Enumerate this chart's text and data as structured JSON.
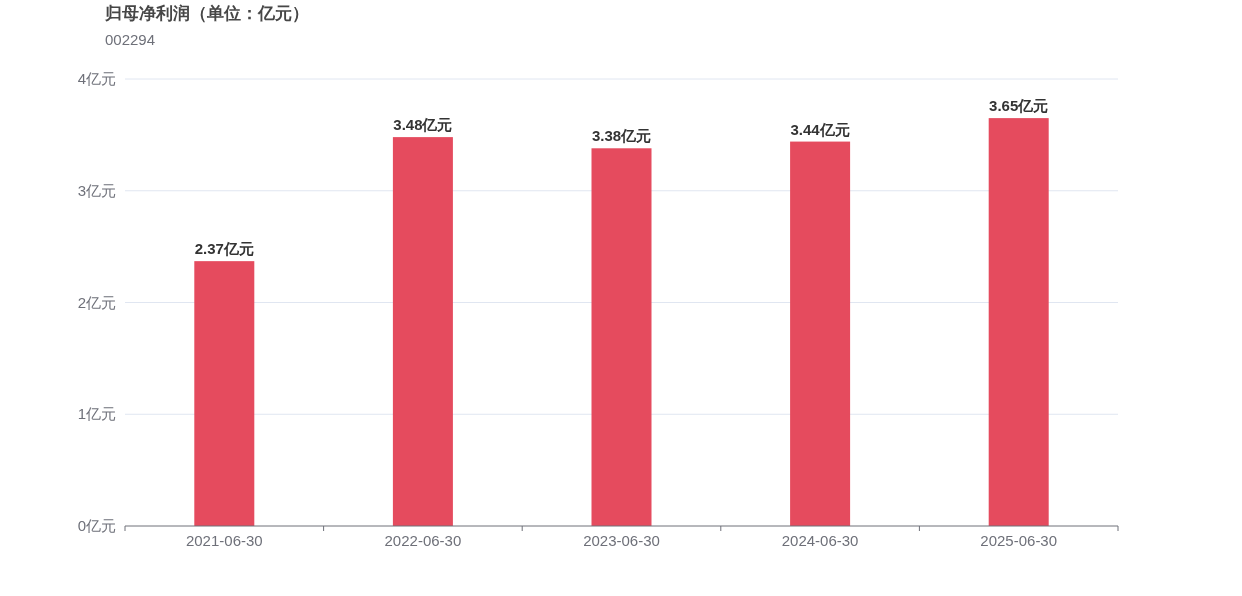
{
  "chart_data": {
    "type": "bar",
    "title": "归母净利润（单位：亿元）",
    "subtitle": "002294",
    "categories": [
      "2021-06-30",
      "2022-06-30",
      "2023-06-30",
      "2024-06-30",
      "2025-06-30"
    ],
    "values": [
      2.37,
      3.48,
      3.38,
      3.44,
      3.65
    ],
    "value_labels": [
      "2.37亿元",
      "3.48亿元",
      "3.38亿元",
      "3.44亿元",
      "3.65亿元"
    ],
    "color": "#e54b5e",
    "ylim": [
      0,
      4
    ],
    "yticks": [
      {
        "value": 0,
        "label": "0亿元"
      },
      {
        "value": 1,
        "label": "1亿元"
      },
      {
        "value": 2,
        "label": "2亿元"
      },
      {
        "value": 3,
        "label": "3亿元"
      },
      {
        "value": 4,
        "label": "4亿元"
      }
    ],
    "grid": "y"
  }
}
